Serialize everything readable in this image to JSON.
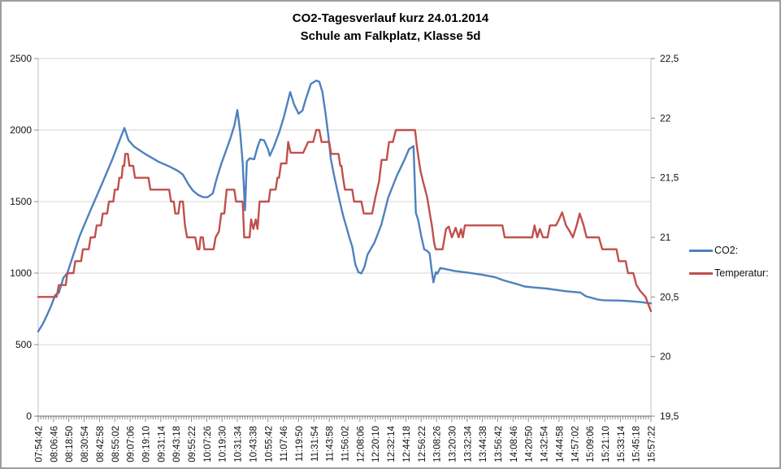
{
  "chart_data": {
    "type": "line",
    "title": "CO2-Tagesverlauf kurz 24.01.2014",
    "subtitle": "Schule am Falkplatz, Klasse 5d",
    "grid": true,
    "legend_position": "right",
    "colors": {
      "co2_line": "#4F81BD",
      "temperature_line": "#C0504D",
      "gridline": "#d4d4d4",
      "plot_border": "#c0c0c0",
      "axis_line": "#7a7a7a",
      "tick": "#8c8c8c",
      "label_text": "#111111"
    },
    "left_axis": {
      "min": 0,
      "max": 2500,
      "step": 500,
      "tick_values": [
        0,
        500,
        1000,
        1500,
        2000,
        2500
      ],
      "tick_labels": [
        "0",
        "500",
        "1000",
        "1500",
        "2000",
        "2500"
      ]
    },
    "right_axis": {
      "min": 19.5,
      "max": 22.5,
      "step": 0.5,
      "tick_values": [
        19.5,
        20,
        20.5,
        21,
        21.5,
        22,
        22.5
      ],
      "tick_labels": [
        "19,5",
        "20",
        "20,5",
        "21",
        "21,5",
        "22",
        "22,5"
      ]
    },
    "x_axis": {
      "minor_ticks_per_interval": 6,
      "labels": [
        "07:54:42",
        "08:06:46",
        "08:18:50",
        "08:30:54",
        "08:42:58",
        "08:55:02",
        "09:07:06",
        "09:19:10",
        "09:31:14",
        "09:43:18",
        "09:55:22",
        "10:07:26",
        "10:19:30",
        "10:31:34",
        "10:43:38",
        "10:55:42",
        "11:07:46",
        "11:19:50",
        "11:31:54",
        "11:43:58",
        "11:56:02",
        "12:08:06",
        "12:20:10",
        "12:32:14",
        "12:44:18",
        "12:56:22",
        "13:08:26",
        "13:20:30",
        "13:32:34",
        "13:44:38",
        "13:56:42",
        "14:08:46",
        "14:20:50",
        "14:32:54",
        "14:44:58",
        "14:57:02",
        "15:09:06",
        "15:21:10",
        "15:33:14",
        "15:45:18",
        "15:57:22"
      ]
    },
    "series": [
      {
        "name": "CO2:",
        "axis": "left",
        "color": "#4F81BD",
        "points": [
          [
            0,
            592
          ],
          [
            0.3,
            645
          ],
          [
            0.6,
            712
          ],
          [
            0.85,
            772
          ],
          [
            1.1,
            845
          ],
          [
            1.35,
            862
          ],
          [
            1.65,
            968
          ],
          [
            1.9,
            1000
          ],
          [
            2.2,
            1098
          ],
          [
            2.7,
            1258
          ],
          [
            3.45,
            1448
          ],
          [
            4.15,
            1620
          ],
          [
            4.85,
            1798
          ],
          [
            5.35,
            1938
          ],
          [
            5.63,
            2015
          ],
          [
            5.9,
            1928
          ],
          [
            6.25,
            1886
          ],
          [
            7.0,
            1832
          ],
          [
            7.9,
            1776
          ],
          [
            8.55,
            1746
          ],
          [
            9.1,
            1716
          ],
          [
            9.45,
            1688
          ],
          [
            9.8,
            1622
          ],
          [
            10.1,
            1576
          ],
          [
            10.45,
            1546
          ],
          [
            10.75,
            1532
          ],
          [
            11.05,
            1530
          ],
          [
            11.4,
            1558
          ],
          [
            11.65,
            1660
          ],
          [
            11.95,
            1764
          ],
          [
            12.3,
            1868
          ],
          [
            12.55,
            1944
          ],
          [
            12.8,
            2030
          ],
          [
            13.0,
            2140
          ],
          [
            13.18,
            1990
          ],
          [
            13.35,
            1772
          ],
          [
            13.5,
            1440
          ],
          [
            13.62,
            1780
          ],
          [
            13.8,
            1802
          ],
          [
            14.1,
            1796
          ],
          [
            14.3,
            1876
          ],
          [
            14.5,
            1934
          ],
          [
            14.75,
            1928
          ],
          [
            15.0,
            1866
          ],
          [
            15.12,
            1820
          ],
          [
            15.4,
            1888
          ],
          [
            15.75,
            1990
          ],
          [
            16.05,
            2096
          ],
          [
            16.45,
            2266
          ],
          [
            16.7,
            2180
          ],
          [
            17.0,
            2114
          ],
          [
            17.25,
            2136
          ],
          [
            17.45,
            2210
          ],
          [
            17.8,
            2322
          ],
          [
            18.15,
            2346
          ],
          [
            18.35,
            2338
          ],
          [
            18.55,
            2266
          ],
          [
            18.75,
            2124
          ],
          [
            18.95,
            1952
          ],
          [
            19.1,
            1800
          ],
          [
            19.3,
            1690
          ],
          [
            19.5,
            1590
          ],
          [
            19.7,
            1496
          ],
          [
            19.9,
            1404
          ],
          [
            20.1,
            1330
          ],
          [
            20.3,
            1252
          ],
          [
            20.5,
            1186
          ],
          [
            20.7,
            1062
          ],
          [
            20.9,
            1006
          ],
          [
            21.1,
            998
          ],
          [
            21.3,
            1044
          ],
          [
            21.5,
            1130
          ],
          [
            21.95,
            1214
          ],
          [
            22.4,
            1338
          ],
          [
            22.85,
            1528
          ],
          [
            23.4,
            1678
          ],
          [
            23.9,
            1790
          ],
          [
            24.2,
            1866
          ],
          [
            24.5,
            1888
          ],
          [
            24.65,
            1422
          ],
          [
            24.8,
            1372
          ],
          [
            25.0,
            1260
          ],
          [
            25.2,
            1166
          ],
          [
            25.38,
            1156
          ],
          [
            25.55,
            1138
          ],
          [
            25.67,
            1032
          ],
          [
            25.8,
            936
          ],
          [
            25.95,
            1006
          ],
          [
            26.06,
            996
          ],
          [
            26.25,
            1036
          ],
          [
            26.6,
            1028
          ],
          [
            27.2,
            1015
          ],
          [
            28.1,
            1002
          ],
          [
            29.0,
            988
          ],
          [
            29.8,
            972
          ],
          [
            30.3,
            952
          ],
          [
            30.7,
            940
          ],
          [
            31.2,
            925
          ],
          [
            31.75,
            906
          ],
          [
            32.3,
            900
          ],
          [
            33.2,
            892
          ],
          [
            34.4,
            874
          ],
          [
            35.4,
            864
          ],
          [
            35.75,
            838
          ],
          [
            36.2,
            825
          ],
          [
            36.5,
            816
          ],
          [
            36.9,
            810
          ],
          [
            38.0,
            808
          ],
          [
            38.6,
            804
          ],
          [
            39.3,
            798
          ],
          [
            40,
            788
          ]
        ]
      },
      {
        "name": "Temperatur:",
        "axis": "right",
        "color": "#C0504D",
        "points": [
          [
            0,
            20.5
          ],
          [
            1.2,
            20.5
          ],
          [
            1.35,
            20.6
          ],
          [
            1.8,
            20.6
          ],
          [
            1.9,
            20.7
          ],
          [
            2.3,
            20.7
          ],
          [
            2.42,
            20.8
          ],
          [
            2.8,
            20.8
          ],
          [
            2.92,
            20.9
          ],
          [
            3.3,
            20.9
          ],
          [
            3.42,
            21.0
          ],
          [
            3.7,
            21.0
          ],
          [
            3.82,
            21.1
          ],
          [
            4.1,
            21.1
          ],
          [
            4.22,
            21.2
          ],
          [
            4.5,
            21.2
          ],
          [
            4.62,
            21.3
          ],
          [
            4.9,
            21.3
          ],
          [
            5.0,
            21.4
          ],
          [
            5.2,
            21.4
          ],
          [
            5.3,
            21.5
          ],
          [
            5.45,
            21.5
          ],
          [
            5.52,
            21.6
          ],
          [
            5.62,
            21.6
          ],
          [
            5.68,
            21.7
          ],
          [
            5.85,
            21.7
          ],
          [
            5.95,
            21.6
          ],
          [
            6.2,
            21.6
          ],
          [
            6.32,
            21.5
          ],
          [
            7.2,
            21.5
          ],
          [
            7.32,
            21.4
          ],
          [
            8.55,
            21.4
          ],
          [
            8.67,
            21.3
          ],
          [
            8.85,
            21.3
          ],
          [
            8.95,
            21.2
          ],
          [
            9.15,
            21.2
          ],
          [
            9.25,
            21.3
          ],
          [
            9.45,
            21.3
          ],
          [
            9.58,
            21.1
          ],
          [
            9.72,
            21.0
          ],
          [
            10.25,
            21.0
          ],
          [
            10.4,
            20.9
          ],
          [
            10.52,
            20.9
          ],
          [
            10.6,
            21.0
          ],
          [
            10.75,
            21.0
          ],
          [
            10.85,
            20.9
          ],
          [
            11.45,
            20.9
          ],
          [
            11.58,
            21.0
          ],
          [
            11.8,
            21.05
          ],
          [
            11.95,
            21.2
          ],
          [
            12.15,
            21.2
          ],
          [
            12.3,
            21.4
          ],
          [
            12.8,
            21.4
          ],
          [
            12.92,
            21.3
          ],
          [
            13.35,
            21.3
          ],
          [
            13.45,
            21.0
          ],
          [
            13.8,
            21.0
          ],
          [
            13.9,
            21.15
          ],
          [
            14.05,
            21.07
          ],
          [
            14.2,
            21.15
          ],
          [
            14.32,
            21.07
          ],
          [
            14.45,
            21.3
          ],
          [
            15.05,
            21.3
          ],
          [
            15.15,
            21.4
          ],
          [
            15.5,
            21.4
          ],
          [
            15.62,
            21.5
          ],
          [
            15.72,
            21.5
          ],
          [
            15.85,
            21.62
          ],
          [
            16.2,
            21.62
          ],
          [
            16.32,
            21.8
          ],
          [
            16.48,
            21.71
          ],
          [
            17.3,
            21.71
          ],
          [
            17.62,
            21.8
          ],
          [
            17.95,
            21.8
          ],
          [
            18.15,
            21.9
          ],
          [
            18.35,
            21.9
          ],
          [
            18.5,
            21.8
          ],
          [
            19.0,
            21.8
          ],
          [
            19.12,
            21.7
          ],
          [
            19.6,
            21.7
          ],
          [
            19.72,
            21.6
          ],
          [
            19.8,
            21.6
          ],
          [
            19.9,
            21.5
          ],
          [
            20.02,
            21.4
          ],
          [
            20.5,
            21.4
          ],
          [
            20.62,
            21.3
          ],
          [
            21.1,
            21.3
          ],
          [
            21.25,
            21.2
          ],
          [
            21.8,
            21.2
          ],
          [
            22.0,
            21.33
          ],
          [
            22.25,
            21.47
          ],
          [
            22.42,
            21.65
          ],
          [
            22.75,
            21.65
          ],
          [
            22.9,
            21.8
          ],
          [
            23.15,
            21.8
          ],
          [
            23.35,
            21.9
          ],
          [
            24.6,
            21.9
          ],
          [
            24.72,
            21.76
          ],
          [
            24.95,
            21.56
          ],
          [
            25.12,
            21.47
          ],
          [
            25.4,
            21.33
          ],
          [
            25.55,
            21.21
          ],
          [
            25.7,
            21.1
          ],
          [
            25.85,
            20.95
          ],
          [
            25.95,
            20.9
          ],
          [
            26.4,
            20.9
          ],
          [
            26.62,
            21.07
          ],
          [
            26.8,
            21.09
          ],
          [
            27.0,
            21.0
          ],
          [
            27.25,
            21.08
          ],
          [
            27.45,
            21.0
          ],
          [
            27.6,
            21.07
          ],
          [
            27.72,
            21.0
          ],
          [
            27.85,
            21.1
          ],
          [
            30.3,
            21.1
          ],
          [
            30.45,
            21.0
          ],
          [
            32.25,
            21.0
          ],
          [
            32.4,
            21.1
          ],
          [
            32.58,
            21.0
          ],
          [
            32.75,
            21.07
          ],
          [
            32.95,
            21.0
          ],
          [
            33.25,
            21.0
          ],
          [
            33.4,
            21.1
          ],
          [
            33.8,
            21.1
          ],
          [
            34.0,
            21.15
          ],
          [
            34.2,
            21.21
          ],
          [
            34.45,
            21.1
          ],
          [
            34.7,
            21.05
          ],
          [
            34.9,
            21.0
          ],
          [
            35.15,
            21.1
          ],
          [
            35.35,
            21.2
          ],
          [
            35.6,
            21.1
          ],
          [
            35.8,
            21.0
          ],
          [
            36.6,
            21.0
          ],
          [
            36.82,
            20.9
          ],
          [
            37.75,
            20.9
          ],
          [
            37.9,
            20.8
          ],
          [
            38.35,
            20.8
          ],
          [
            38.5,
            20.7
          ],
          [
            38.85,
            20.7
          ],
          [
            39.05,
            20.6
          ],
          [
            39.3,
            20.55
          ],
          [
            39.65,
            20.5
          ],
          [
            39.88,
            20.42
          ],
          [
            40,
            20.38
          ]
        ]
      }
    ]
  }
}
